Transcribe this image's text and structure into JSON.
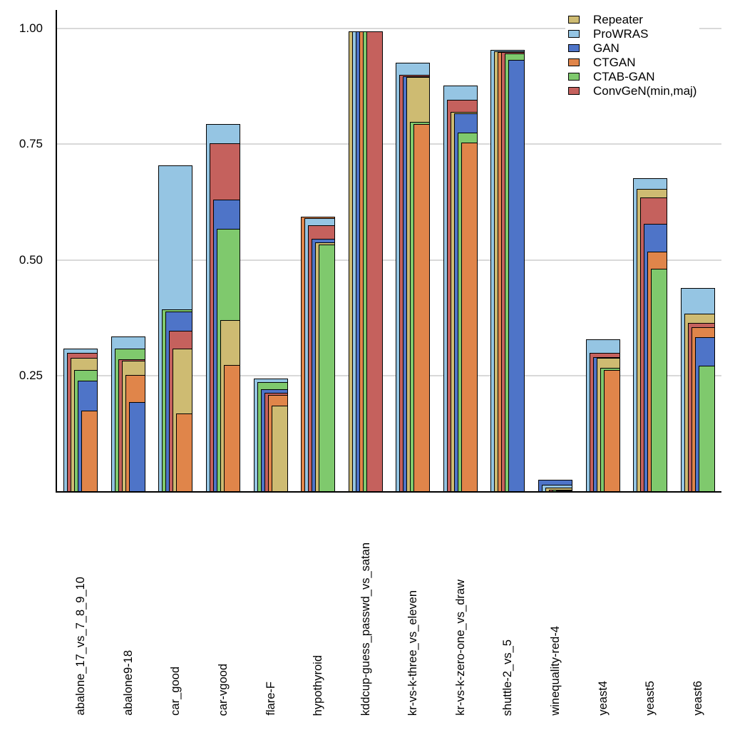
{
  "chart_data": {
    "type": "bar",
    "variant": "nested-overlapping-bars",
    "title": "",
    "xlabel": "",
    "ylabel": "",
    "ylim": [
      0,
      1.0
    ],
    "yticks": [
      0.25,
      0.5,
      0.75,
      1.0
    ],
    "ytick_labels": [
      "0.25",
      "0.50",
      "0.75",
      "1.00"
    ],
    "grid": "horizontal",
    "legend_position": "top-right",
    "categories": [
      "abalone_17_vs_7_8_9_10",
      "abalone9-18",
      "car_good",
      "car-vgood",
      "flare-F",
      "hypothyroid",
      "kddcup-guess_passwd_vs_satan",
      "kr-vs-k-three_vs_eleven",
      "kr-vs-k-zero-one_vs_draw",
      "shuttle-2_vs_5",
      "winequality-red-4",
      "yeast4",
      "yeast5",
      "yeast6"
    ],
    "series": [
      {
        "name": "Repeater",
        "color": "#CEBB72",
        "values": [
          0.289,
          0.284,
          0.31,
          0.371,
          0.187,
          0.539,
          0.995,
          0.896,
          0.821,
          0.952,
          0.01,
          0.29,
          0.655,
          0.385
        ]
      },
      {
        "name": "ProWRAS",
        "color": "#95C5E3",
        "values": [
          0.31,
          0.336,
          0.706,
          0.795,
          0.245,
          0.592,
          0.995,
          0.928,
          0.879,
          0.956,
          0.016,
          0.33,
          0.678,
          0.44
        ]
      },
      {
        "name": "GAN",
        "color": "#4E74C8",
        "values": [
          0.241,
          0.194,
          0.39,
          0.631,
          0.222,
          0.547,
          0.995,
          0.899,
          0.818,
          0.933,
          0.026,
          0.291,
          0.579,
          0.335
        ]
      },
      {
        "name": "CTGAN",
        "color": "#E0854A",
        "values": [
          0.175,
          0.253,
          0.17,
          0.274,
          0.209,
          0.594,
          0.995,
          0.795,
          0.755,
          0.951,
          0.003,
          0.263,
          0.519,
          0.356
        ]
      },
      {
        "name": "CTAB-GAN",
        "color": "#7FC96D",
        "values": [
          0.264,
          0.31,
          0.395,
          0.569,
          0.237,
          0.534,
          0.995,
          0.8,
          0.776,
          0.948,
          0.004,
          0.268,
          0.483,
          0.272
        ]
      },
      {
        "name": "ConvGeN(min,maj)",
        "color": "#C5615D",
        "values": [
          0.301,
          0.286,
          0.348,
          0.754,
          0.214,
          0.576,
          0.995,
          0.901,
          0.848,
          0.95,
          0.005,
          0.3,
          0.637,
          0.365
        ]
      }
    ]
  },
  "colors": {
    "background": "#FFFFFF",
    "axis": "#000000",
    "gridline": "#D9D9D9",
    "bar_border": "#000000"
  }
}
